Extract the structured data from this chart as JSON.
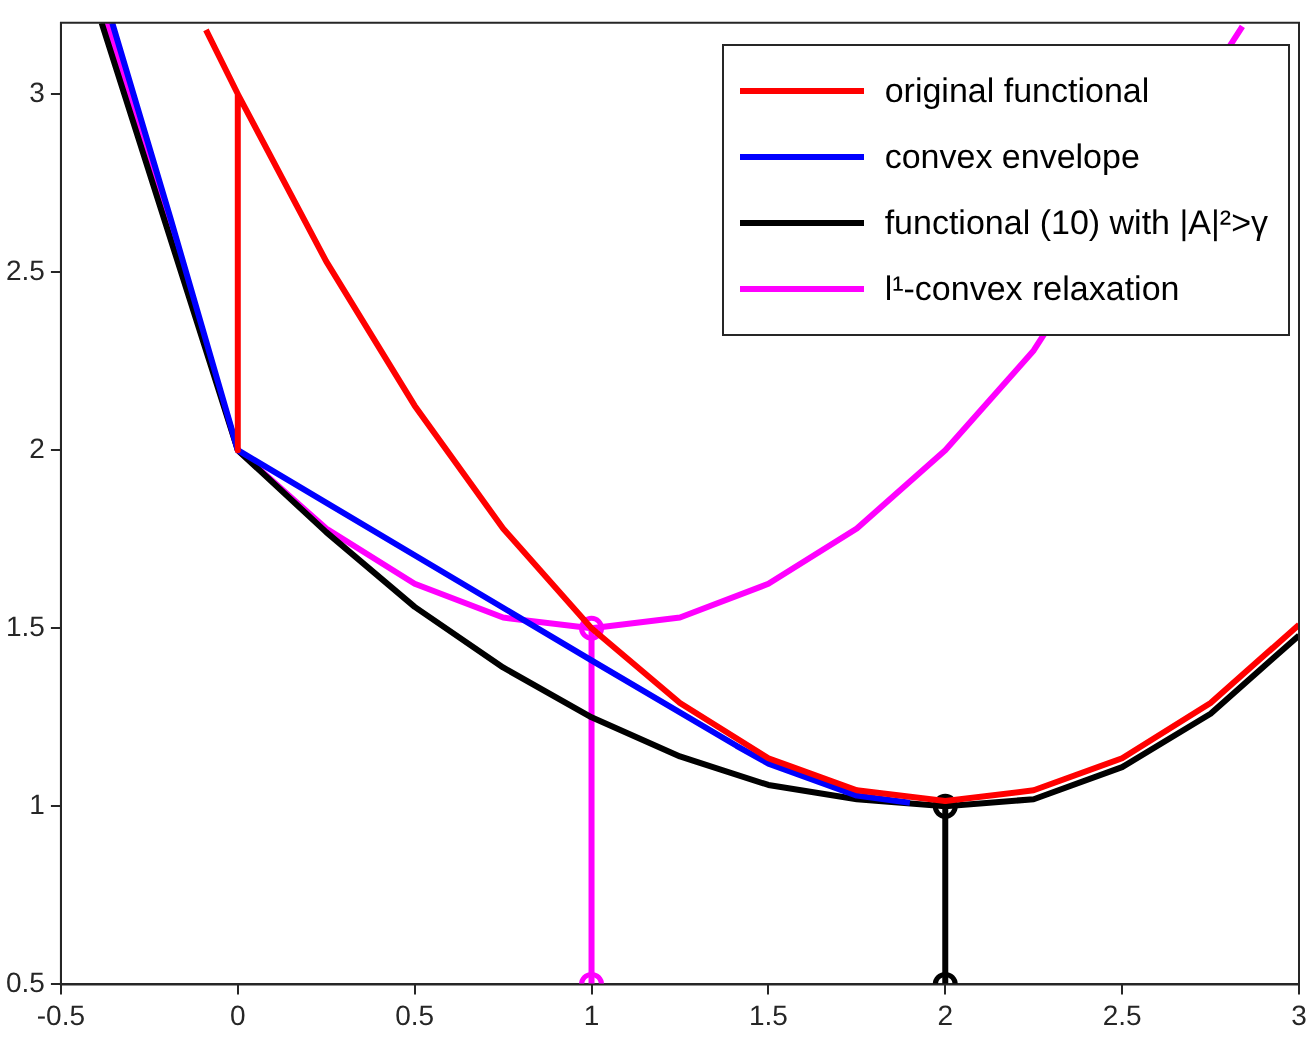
{
  "chart_data": {
    "type": "line",
    "xlim": [
      -0.5,
      3
    ],
    "ylim": [
      0.5,
      3.2
    ],
    "xticks": [
      -0.5,
      0,
      0.5,
      1,
      1.5,
      2,
      2.5,
      3
    ],
    "yticks": [
      0.5,
      1,
      1.5,
      2,
      2.5,
      3
    ],
    "grid": false,
    "legend": "top right",
    "marker": "none",
    "line_style": "solid",
    "series": [
      {
        "name": "original functional",
        "color": "#ff0000",
        "x": [
          -0.09,
          0,
          0,
          0,
          0.25,
          0.5,
          0.75,
          1,
          1.25,
          1.5,
          1.75,
          2,
          2.25,
          2.5,
          2.75,
          3
        ],
        "values": [
          3.18,
          3,
          2,
          3,
          2.53,
          2.125,
          1.78,
          1.5,
          1.29,
          1.135,
          1.045,
          1.015,
          1.045,
          1.135,
          1.29,
          1.51
        ]
      },
      {
        "name": "convex envelope",
        "color": "#0000ff",
        "x": [
          -0.355,
          -0.19,
          0,
          0.5,
          1,
          1.41,
          1.5,
          1.75,
          1.9
        ],
        "values": [
          3.2,
          2.65,
          2,
          1.705,
          1.41,
          1.17,
          1.12,
          1.03,
          1.01
        ]
      },
      {
        "name": "functional (10) with |A|²>γ",
        "color": "#000000",
        "x": [
          -0.385,
          0,
          0.25,
          0.5,
          0.75,
          1,
          1.25,
          1.5,
          1.75,
          2,
          2.25,
          2.5,
          2.75,
          3
        ],
        "values": [
          3.2,
          2,
          1.77,
          1.56,
          1.39,
          1.25,
          1.14,
          1.06,
          1.02,
          1,
          1.02,
          1.11,
          1.26,
          1.48
        ]
      },
      {
        "name": "l¹-convex relaxation",
        "color": "#ff00ff",
        "x": [
          -0.37,
          0,
          0.25,
          0.5,
          0.75,
          1,
          1.25,
          1.5,
          1.75,
          2,
          2.25,
          2.5,
          2.75,
          2.84
        ],
        "values": [
          3.2,
          2,
          1.78,
          1.625,
          1.53,
          1.5,
          1.53,
          1.625,
          1.78,
          2,
          2.28,
          null,
          null,
          3.19
        ]
      },
      {
        "color": "#ff00ff",
        "marker": "circle",
        "x": [
          1,
          1
        ],
        "values": [
          0.5,
          1.5
        ]
      },
      {
        "color": "#000000",
        "marker": "circle",
        "x": [
          2,
          2
        ],
        "values": [
          0.5,
          1
        ]
      }
    ]
  }
}
